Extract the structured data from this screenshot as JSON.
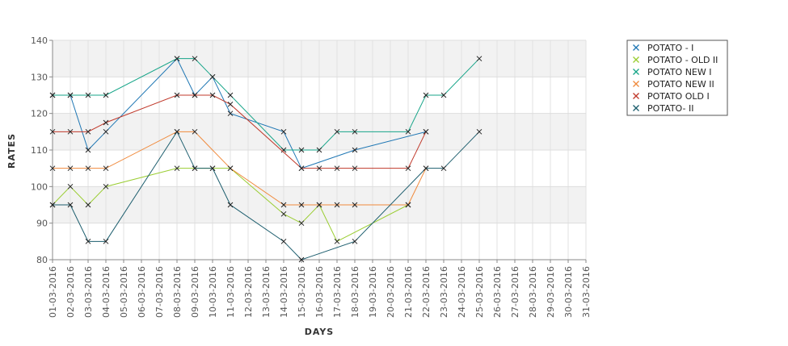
{
  "chart_data": {
    "type": "line",
    "xlabel": "DAYS",
    "ylabel": "RATES",
    "ylim": [
      80,
      140
    ],
    "yticks": [
      80,
      90,
      100,
      110,
      120,
      130,
      140
    ],
    "grid": true,
    "legend_position": "top-right",
    "categories": [
      "01-03-2016",
      "02-03-2016",
      "03-03-2016",
      "04-03-2016",
      "05-03-2016",
      "06-03-2016",
      "07-03-2016",
      "08-03-2016",
      "09-03-2016",
      "10-03-2016",
      "11-03-2016",
      "12-03-2016",
      "13-03-2016",
      "14-03-2016",
      "15-03-2016",
      "16-03-2016",
      "17-03-2016",
      "18-03-2016",
      "19-03-2016",
      "20-03-2016",
      "21-03-2016",
      "22-03-2016",
      "23-03-2016",
      "24-03-2016",
      "25-03-2016",
      "26-03-2016",
      "27-03-2016",
      "28-03-2016",
      "29-03-2016",
      "30-03-2016",
      "31-03-2016"
    ],
    "series": [
      {
        "name": "POTATO - I",
        "color": "#1f77b4",
        "values": [
          125,
          125,
          110,
          115,
          null,
          null,
          null,
          135,
          125,
          130,
          120,
          null,
          null,
          115,
          105,
          null,
          null,
          110,
          null,
          null,
          null,
          115,
          null,
          null,
          null,
          null,
          null,
          null,
          null,
          null,
          null
        ]
      },
      {
        "name": "POTATO - OLD II",
        "color": "#9acd32",
        "values": [
          95,
          100,
          95,
          100,
          null,
          null,
          null,
          105,
          105,
          105,
          105,
          null,
          null,
          92.5,
          90,
          95,
          85,
          null,
          null,
          null,
          95,
          null,
          null,
          null,
          null,
          null,
          null,
          null,
          null,
          null,
          null
        ]
      },
      {
        "name": "POTATO NEW I",
        "color": "#17a589",
        "values": [
          125,
          125,
          125,
          125,
          null,
          null,
          null,
          135,
          135,
          130,
          125,
          null,
          null,
          110,
          110,
          110,
          115,
          115,
          null,
          null,
          115,
          125,
          125,
          null,
          135,
          null,
          null,
          null,
          null,
          null,
          null
        ]
      },
      {
        "name": "POTATO NEW II",
        "color": "#f08a3c",
        "values": [
          105,
          105,
          105,
          105,
          null,
          null,
          null,
          115,
          115,
          null,
          105,
          null,
          null,
          95,
          95,
          95,
          95,
          95,
          null,
          null,
          95,
          105,
          null,
          null,
          null,
          null,
          null,
          null,
          null,
          null,
          null
        ]
      },
      {
        "name": "POTATO OLD I",
        "color": "#c0392b",
        "values": [
          115,
          115,
          115,
          117.5,
          null,
          null,
          null,
          125,
          125,
          125,
          122.5,
          null,
          null,
          null,
          105,
          105,
          105,
          105,
          null,
          null,
          105,
          115,
          null,
          null,
          null,
          null,
          null,
          null,
          null,
          null,
          null
        ]
      },
      {
        "name": "POTATO- II",
        "color": "#1d5e6e",
        "values": [
          95,
          95,
          85,
          85,
          null,
          null,
          null,
          115,
          105,
          105,
          95,
          null,
          null,
          85,
          80,
          null,
          null,
          85,
          null,
          null,
          null,
          105,
          105,
          null,
          115,
          null,
          null,
          null,
          null,
          null,
          null
        ]
      }
    ]
  }
}
